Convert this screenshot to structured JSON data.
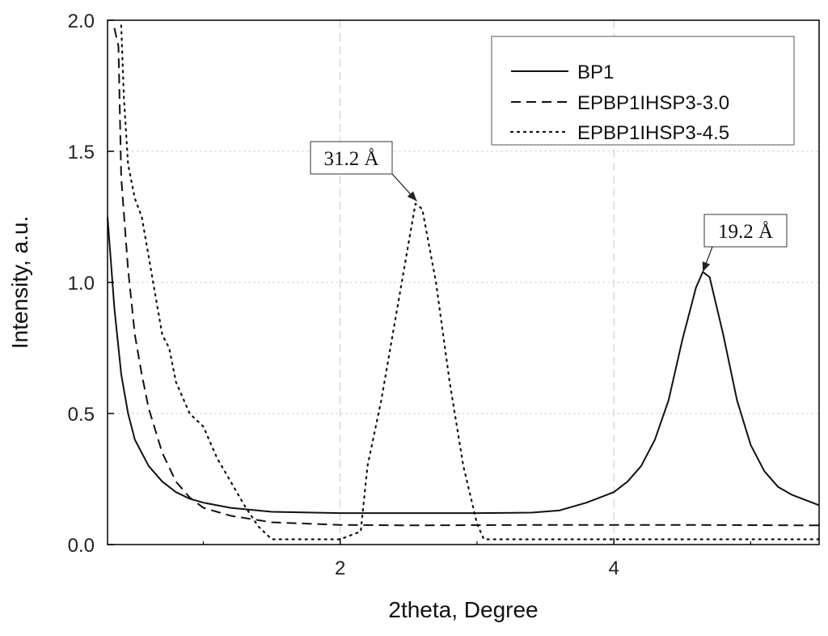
{
  "chart_data": {
    "type": "line",
    "xlabel": "2theta, Degree",
    "ylabel": "Intensity, a.u.",
    "xlim": [
      0.3,
      5.5
    ],
    "ylim": [
      0.0,
      2.0
    ],
    "xticks": [
      2,
      4
    ],
    "yticks": [
      0.0,
      0.5,
      1.0,
      1.5,
      2.0
    ],
    "xtick_labels": [
      "2",
      "4"
    ],
    "ytick_labels": [
      "0.0",
      "0.5",
      "1.0",
      "1.5",
      "2.0"
    ],
    "grid": true,
    "legend_position": "top-right",
    "series": [
      {
        "name": "BP1",
        "style": "solid",
        "x": [
          0.3,
          0.35,
          0.4,
          0.45,
          0.5,
          0.6,
          0.7,
          0.8,
          0.9,
          1.0,
          1.2,
          1.5,
          2.0,
          2.5,
          3.0,
          3.4,
          3.6,
          3.8,
          4.0,
          4.1,
          4.2,
          4.3,
          4.4,
          4.5,
          4.6,
          4.65,
          4.7,
          4.8,
          4.9,
          5.0,
          5.1,
          5.2,
          5.3,
          5.4,
          5.5
        ],
        "y": [
          1.25,
          0.9,
          0.65,
          0.5,
          0.4,
          0.3,
          0.24,
          0.2,
          0.175,
          0.16,
          0.14,
          0.125,
          0.12,
          0.12,
          0.12,
          0.122,
          0.13,
          0.16,
          0.2,
          0.24,
          0.3,
          0.4,
          0.55,
          0.78,
          0.98,
          1.04,
          1.02,
          0.8,
          0.55,
          0.38,
          0.28,
          0.22,
          0.19,
          0.17,
          0.15
        ]
      },
      {
        "name": "EPBP1IHSP3-3.0",
        "style": "dashed",
        "x": [
          0.35,
          0.38,
          0.4,
          0.45,
          0.5,
          0.55,
          0.6,
          0.7,
          0.8,
          0.9,
          1.0,
          1.2,
          1.5,
          2.0,
          2.5,
          3.0,
          3.5,
          4.0,
          4.5,
          5.0,
          5.5
        ],
        "y": [
          1.97,
          1.9,
          1.4,
          1.05,
          0.8,
          0.65,
          0.52,
          0.35,
          0.24,
          0.18,
          0.14,
          0.11,
          0.085,
          0.075,
          0.073,
          0.074,
          0.075,
          0.075,
          0.075,
          0.074,
          0.073
        ]
      },
      {
        "name": "EPBP1IHSP3-4.5",
        "style": "dotted",
        "x": [
          0.4,
          0.42,
          0.45,
          0.5,
          0.55,
          0.6,
          0.65,
          0.7,
          0.75,
          0.8,
          0.9,
          1.0,
          1.1,
          1.2,
          1.3,
          1.4,
          1.5,
          1.6,
          2.0,
          2.15,
          2.2,
          2.3,
          2.4,
          2.5,
          2.55,
          2.6,
          2.7,
          2.8,
          2.9,
          3.0,
          3.05,
          3.5,
          4.0,
          4.5,
          5.0,
          5.5
        ],
        "y": [
          1.98,
          1.7,
          1.45,
          1.32,
          1.25,
          1.1,
          0.95,
          0.8,
          0.75,
          0.62,
          0.5,
          0.45,
          0.33,
          0.24,
          0.15,
          0.07,
          0.02,
          0.02,
          0.02,
          0.05,
          0.3,
          0.55,
          0.85,
          1.15,
          1.3,
          1.28,
          1.0,
          0.62,
          0.3,
          0.08,
          0.02,
          0.02,
          0.02,
          0.02,
          0.02,
          0.02
        ]
      }
    ],
    "annotations": [
      {
        "text": "31.2 Å",
        "target_x": 2.56,
        "target_y": 1.31
      },
      {
        "text": "19.2 Å",
        "target_x": 4.65,
        "target_y": 1.04
      }
    ]
  }
}
